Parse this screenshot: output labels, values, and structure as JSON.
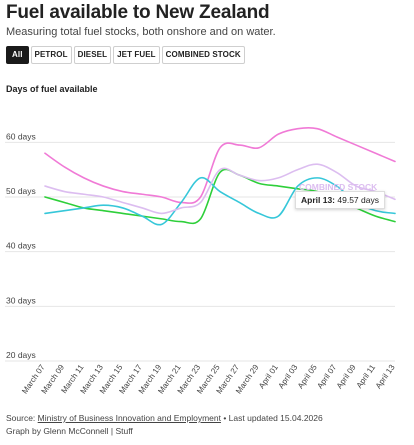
{
  "title": "Fuel available to New Zealand",
  "subtitle": "Measuring total fuel stocks, both onshore and on water.",
  "tabs": [
    "All",
    "PETROL",
    "DIESEL",
    "JET FUEL",
    "COMBINED STOCK"
  ],
  "active_tab": "All",
  "y_axis_title": "Days of fuel available",
  "tooltip": {
    "series": "COMBINED STOCK",
    "date": "April 13:",
    "value": "49.57 days"
  },
  "footer": {
    "source_prefix": "Source: ",
    "source_link": "Ministry of Business Innovation and Employment",
    "updated": " • Last updated 15.04.2026",
    "credit": "Graph by Glenn McConnell | Stuff"
  },
  "colors": {
    "petrol": "#f07ad6",
    "diesel": "#2ecf3a",
    "jet_fuel": "#36c7d9",
    "combined": "#dcbdf0",
    "grid": "#e6e6e6"
  },
  "chart_data": {
    "type": "line",
    "x": [
      "March 07",
      "March 09",
      "March 11",
      "March 13",
      "March 15",
      "March 17",
      "March 19",
      "March 21",
      "March 23",
      "March 25",
      "March 27",
      "March 29",
      "April 01",
      "April 03",
      "April 05",
      "April 07",
      "April 09",
      "April 11",
      "April 13"
    ],
    "ylim": [
      20,
      65
    ],
    "yticks": [
      20,
      30,
      40,
      50,
      60
    ],
    "ytick_labels": [
      "20 days",
      "30 days",
      "40 days",
      "50 days",
      "60 days"
    ],
    "grid": true,
    "series": [
      {
        "name": "PETROL",
        "color_key": "petrol",
        "values": [
          58,
          55.5,
          53.5,
          52,
          51,
          50.5,
          50,
          49,
          50,
          59,
          59.5,
          59,
          61.5,
          62.5,
          62.5,
          61,
          59.5,
          58,
          56.5
        ]
      },
      {
        "name": "DIESEL",
        "color_key": "diesel",
        "values": [
          50,
          49,
          48,
          47.5,
          47,
          46.5,
          46,
          45.5,
          46,
          54.5,
          54,
          52.5,
          52,
          51.5,
          51,
          49.5,
          48,
          46.5,
          45.5
        ]
      },
      {
        "name": "JET FUEL",
        "color_key": "jet_fuel",
        "values": [
          47,
          47.5,
          48,
          48.5,
          48,
          46.5,
          45,
          49,
          53.5,
          51,
          49,
          47,
          46.5,
          52,
          53.5,
          52,
          49,
          47.5,
          47
        ]
      },
      {
        "name": "COMBINED STOCK",
        "color_key": "combined",
        "values": [
          52,
          51,
          50.5,
          50,
          49,
          48,
          47,
          48,
          49,
          55,
          54,
          53,
          53.5,
          55,
          56,
          54.5,
          52,
          51,
          49.57
        ]
      }
    ]
  }
}
